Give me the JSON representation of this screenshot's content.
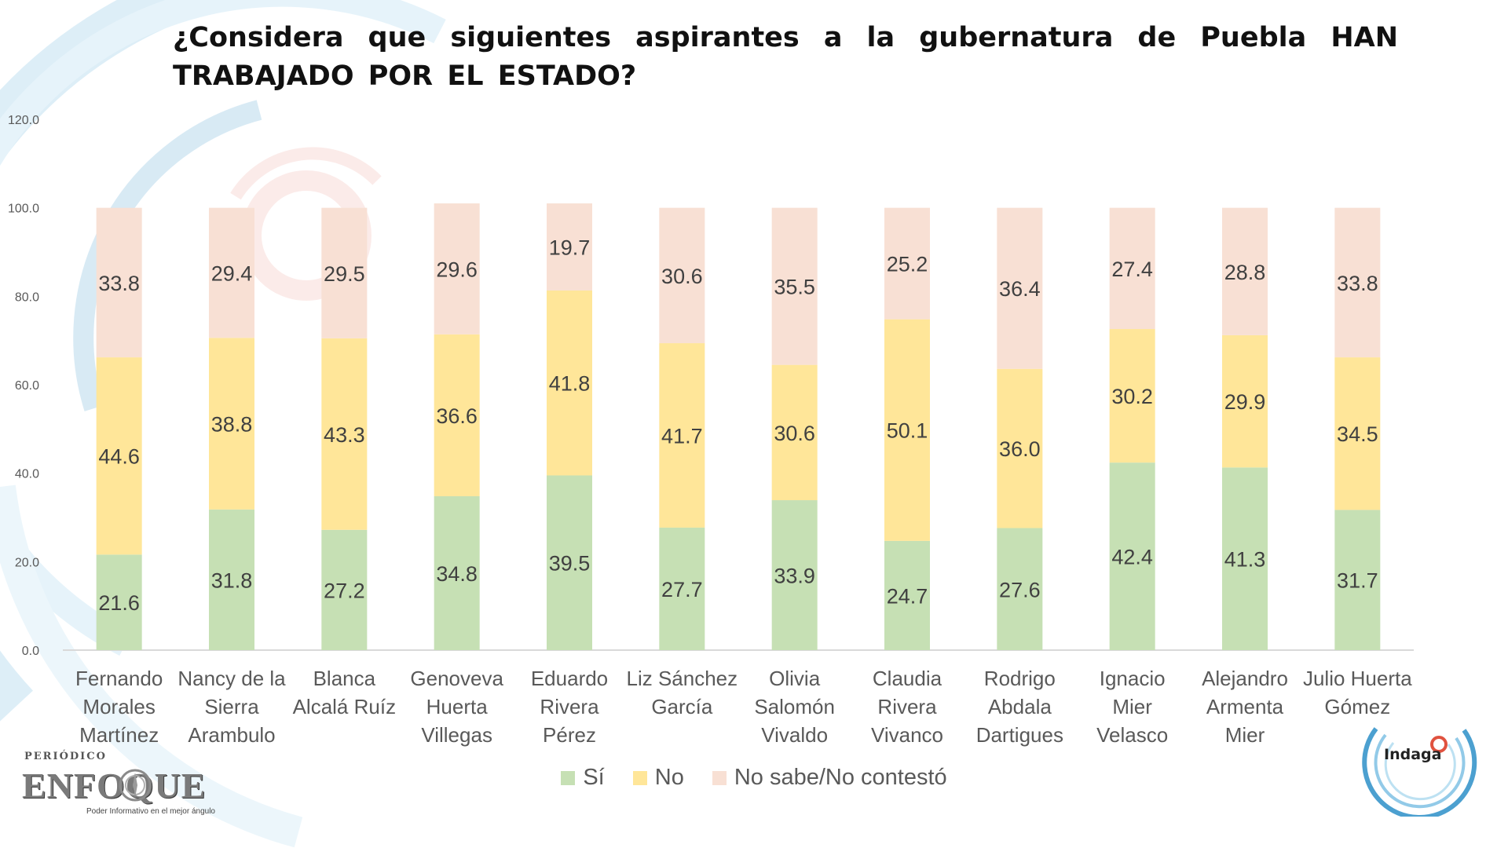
{
  "title": "¿Considera que siguientes aspirantes a la gubernatura de Puebla HAN TRABAJADO POR EL ESTADO?",
  "colors": {
    "si": "#c6e0b4",
    "no": "#ffe699",
    "ns": "#f8e0d4",
    "axis": "#d9d9d9",
    "tick_text": "#595959",
    "value_text": "#404040",
    "category_text": "#595959"
  },
  "legend": [
    {
      "label": "Sí",
      "color": "#c6e0b4"
    },
    {
      "label": "No",
      "color": "#ffe699"
    },
    {
      "label": "No sabe/No contestó",
      "color": "#f8e0d4"
    }
  ],
  "logos": {
    "left": {
      "periodico": "PERIÓDICO",
      "name": "ENFOQUE",
      "tagline": "Poder Informativo en el mejor ángulo"
    },
    "right": {
      "name": "Indaga"
    }
  },
  "chart_data": {
    "type": "bar",
    "stacked": true,
    "title": "¿Considera que siguientes aspirantes a la gubernatura de Puebla HAN TRABAJADO POR EL ESTADO?",
    "xlabel": "",
    "ylabel": "",
    "ylim": [
      0,
      120
    ],
    "yticks": [
      "0.0",
      "20.0",
      "40.0",
      "60.0",
      "80.0",
      "100.0",
      "120.0"
    ],
    "grid": false,
    "legend_position": "bottom",
    "categories": [
      [
        "Fernando",
        "Morales",
        "Martínez"
      ],
      [
        "Nancy de la",
        "Sierra",
        "Arambulo"
      ],
      [
        "Blanca",
        "Alcalá Ruíz"
      ],
      [
        "Genoveva",
        "Huerta",
        "Villegas"
      ],
      [
        "Eduardo",
        "Rivera",
        "Pérez"
      ],
      [
        "Liz Sánchez",
        "García"
      ],
      [
        "Olivia",
        "Salomón",
        "Vivaldo"
      ],
      [
        "Claudia",
        "Rivera",
        "Vivanco"
      ],
      [
        "Rodrigo",
        "Abdala",
        "Dartigues"
      ],
      [
        "Ignacio",
        "Mier",
        "Velasco"
      ],
      [
        "Alejandro",
        "Armenta",
        "Mier"
      ],
      [
        "Julio Huerta",
        "Gómez"
      ]
    ],
    "series": [
      {
        "name": "Sí",
        "key": "si",
        "values": [
          21.6,
          31.8,
          27.2,
          34.8,
          39.5,
          27.7,
          33.9,
          24.7,
          27.6,
          42.4,
          41.3,
          31.7
        ]
      },
      {
        "name": "No",
        "key": "no",
        "values": [
          44.6,
          38.8,
          43.3,
          36.6,
          41.8,
          41.7,
          30.6,
          50.1,
          36.0,
          30.2,
          29.9,
          34.5
        ]
      },
      {
        "name": "No sabe/No contestó",
        "key": "ns",
        "values": [
          33.8,
          29.4,
          29.5,
          29.6,
          19.7,
          30.6,
          35.5,
          25.2,
          36.4,
          27.4,
          28.8,
          33.8
        ]
      }
    ]
  }
}
